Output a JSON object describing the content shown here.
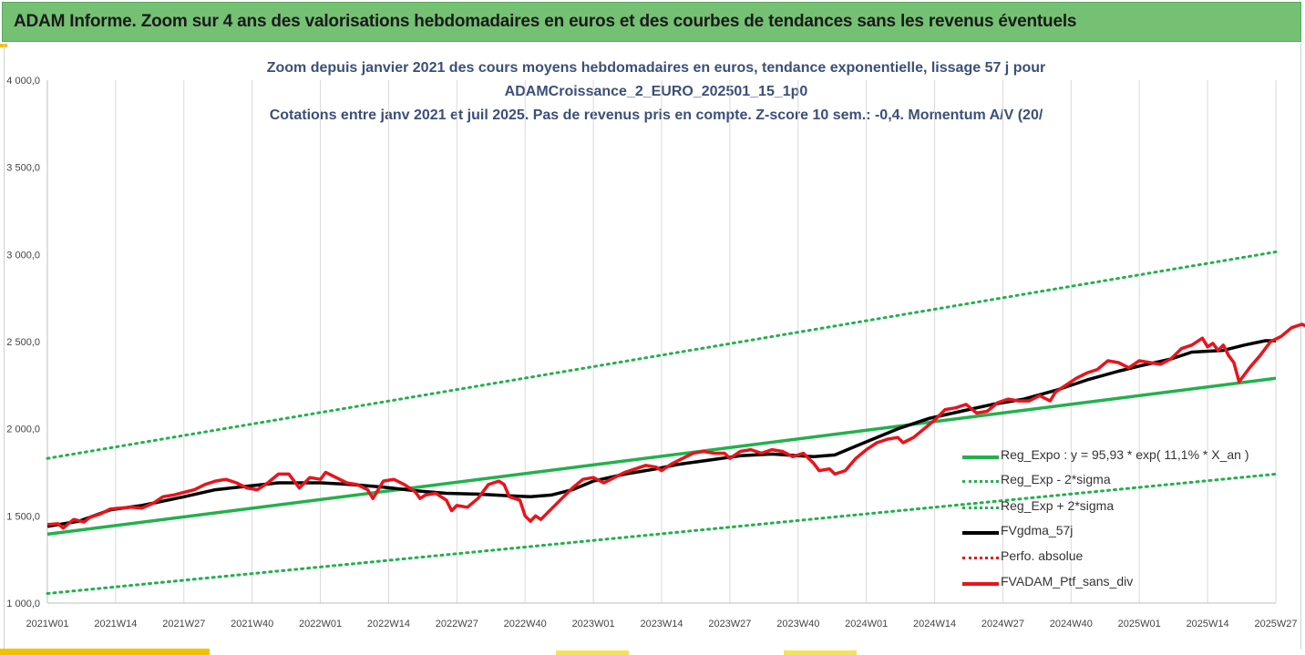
{
  "banner": {
    "title": "ADAM Informe. Zoom sur 4 ans des valorisations hebdomadaires en euros et des courbes de tendances sans les revenus éventuels"
  },
  "colors": {
    "banner_bg": "#74c174",
    "title": "#3b4f7a",
    "green": "#22b14c",
    "black": "#000000",
    "red": "#e8141c",
    "accent": "#f2c200"
  },
  "chart_data": {
    "type": "line",
    "title_lines": [
      "Zoom depuis janvier 2021 des cours moyens hebdomadaires  en euros, tendance exponentielle, lissage 57 j pour",
      "ADAMCroissance_2_EURO_202501_15_1p0",
      "Cotations entre janv 2021 et juil 2025. Pas de revenus pris en compte. Z-score 10 sem.: -0,4. Momentum A/V (20/"
    ],
    "ylim": [
      1000,
      4000
    ],
    "y_ticks": [
      "1 000,0",
      "1 500,0",
      "2 000,0",
      "2 500,0",
      "3 000,0",
      "3 500,0",
      "4 000,0"
    ],
    "y_tick_values": [
      1000,
      1500,
      2000,
      2500,
      3000,
      3500,
      4000
    ],
    "x_ticks": [
      "2021W01",
      "2021W14",
      "2021W27",
      "2021W40",
      "2022W01",
      "2022W14",
      "2022W27",
      "2022W40",
      "2023W01",
      "2023W14",
      "2023W27",
      "2023W40",
      "2024W01",
      "2024W14",
      "2024W27",
      "2024W40",
      "2025W01",
      "2025W14",
      "2025W27"
    ],
    "x_tick_weeks": [
      0,
      13,
      26,
      39,
      52,
      65,
      78,
      91,
      104,
      117,
      130,
      143,
      156,
      169,
      182,
      195,
      208,
      221,
      234
    ],
    "grid": "vertical",
    "legend_position": "bottom-right",
    "series": [
      {
        "name": "Reg_Expo : y = 95,93 * exp( 11,1% *  X_an )",
        "style": "solid-green",
        "points": [
          [
            0,
            1395
          ],
          [
            234,
            2290
          ]
        ]
      },
      {
        "name": "Reg_Exp - 2*sigma",
        "style": "dotted-green",
        "points": [
          [
            0,
            1055
          ],
          [
            234,
            1740
          ]
        ]
      },
      {
        "name": "Reg_Exp + 2*sigma",
        "style": "dotted-green",
        "points": [
          [
            0,
            1830
          ],
          [
            234,
            3015
          ]
        ]
      },
      {
        "name": "FVgdma_57j",
        "style": "solid-black",
        "points": [
          [
            0,
            1440
          ],
          [
            6,
            1470
          ],
          [
            12,
            1535
          ],
          [
            18,
            1560
          ],
          [
            26,
            1610
          ],
          [
            32,
            1650
          ],
          [
            38,
            1670
          ],
          [
            44,
            1690
          ],
          [
            52,
            1690
          ],
          [
            58,
            1680
          ],
          [
            64,
            1665
          ],
          [
            70,
            1645
          ],
          [
            76,
            1630
          ],
          [
            82,
            1625
          ],
          [
            88,
            1615
          ],
          [
            92,
            1610
          ],
          [
            96,
            1620
          ],
          [
            100,
            1650
          ],
          [
            104,
            1700
          ],
          [
            110,
            1740
          ],
          [
            116,
            1770
          ],
          [
            120,
            1795
          ],
          [
            126,
            1820
          ],
          [
            132,
            1845
          ],
          [
            138,
            1855
          ],
          [
            146,
            1840
          ],
          [
            150,
            1850
          ],
          [
            154,
            1900
          ],
          [
            158,
            1950
          ],
          [
            162,
            2000
          ],
          [
            168,
            2060
          ],
          [
            174,
            2100
          ],
          [
            180,
            2140
          ],
          [
            186,
            2170
          ],
          [
            192,
            2220
          ],
          [
            198,
            2280
          ],
          [
            204,
            2330
          ],
          [
            208,
            2360
          ],
          [
            214,
            2400
          ],
          [
            218,
            2440
          ],
          [
            224,
            2450
          ],
          [
            228,
            2480
          ],
          [
            232,
            2505
          ],
          [
            234,
            2505
          ]
        ]
      },
      {
        "name": "Perfo. absolue",
        "style": "dotted-red",
        "points": []
      },
      {
        "name": "FVADAM_Ptf_sans_div",
        "style": "solid-red",
        "points": [
          [
            0,
            1450
          ],
          [
            2,
            1455
          ],
          [
            3,
            1430
          ],
          [
            5,
            1480
          ],
          [
            7,
            1465
          ],
          [
            8,
            1490
          ],
          [
            10,
            1510
          ],
          [
            12,
            1540
          ],
          [
            14,
            1545
          ],
          [
            16,
            1550
          ],
          [
            18,
            1545
          ],
          [
            20,
            1570
          ],
          [
            22,
            1610
          ],
          [
            24,
            1620
          ],
          [
            26,
            1635
          ],
          [
            28,
            1650
          ],
          [
            30,
            1680
          ],
          [
            32,
            1700
          ],
          [
            34,
            1710
          ],
          [
            36,
            1690
          ],
          [
            38,
            1660
          ],
          [
            40,
            1650
          ],
          [
            42,
            1690
          ],
          [
            44,
            1740
          ],
          [
            46,
            1740
          ],
          [
            48,
            1660
          ],
          [
            50,
            1720
          ],
          [
            52,
            1710
          ],
          [
            53,
            1750
          ],
          [
            55,
            1720
          ],
          [
            57,
            1690
          ],
          [
            59,
            1680
          ],
          [
            61,
            1650
          ],
          [
            62,
            1600
          ],
          [
            63,
            1650
          ],
          [
            64,
            1700
          ],
          [
            66,
            1710
          ],
          [
            68,
            1680
          ],
          [
            70,
            1640
          ],
          [
            71,
            1600
          ],
          [
            72,
            1620
          ],
          [
            74,
            1630
          ],
          [
            76,
            1590
          ],
          [
            77,
            1530
          ],
          [
            78,
            1560
          ],
          [
            80,
            1550
          ],
          [
            82,
            1600
          ],
          [
            84,
            1680
          ],
          [
            86,
            1700
          ],
          [
            87,
            1680
          ],
          [
            88,
            1610
          ],
          [
            90,
            1590
          ],
          [
            91,
            1500
          ],
          [
            92,
            1470
          ],
          [
            93,
            1500
          ],
          [
            94,
            1480
          ],
          [
            96,
            1540
          ],
          [
            98,
            1600
          ],
          [
            100,
            1660
          ],
          [
            102,
            1710
          ],
          [
            104,
            1720
          ],
          [
            106,
            1690
          ],
          [
            108,
            1720
          ],
          [
            110,
            1750
          ],
          [
            112,
            1770
          ],
          [
            114,
            1790
          ],
          [
            116,
            1780
          ],
          [
            117,
            1760
          ],
          [
            119,
            1800
          ],
          [
            121,
            1830
          ],
          [
            123,
            1860
          ],
          [
            125,
            1870
          ],
          [
            127,
            1860
          ],
          [
            129,
            1860
          ],
          [
            130,
            1830
          ],
          [
            132,
            1870
          ],
          [
            134,
            1880
          ],
          [
            136,
            1860
          ],
          [
            138,
            1880
          ],
          [
            140,
            1870
          ],
          [
            142,
            1840
          ],
          [
            144,
            1860
          ],
          [
            146,
            1800
          ],
          [
            147,
            1760
          ],
          [
            149,
            1770
          ],
          [
            150,
            1740
          ],
          [
            152,
            1760
          ],
          [
            154,
            1830
          ],
          [
            156,
            1880
          ],
          [
            158,
            1920
          ],
          [
            160,
            1940
          ],
          [
            162,
            1950
          ],
          [
            163,
            1920
          ],
          [
            165,
            1950
          ],
          [
            167,
            2000
          ],
          [
            169,
            2050
          ],
          [
            171,
            2110
          ],
          [
            173,
            2120
          ],
          [
            175,
            2140
          ],
          [
            177,
            2090
          ],
          [
            179,
            2100
          ],
          [
            181,
            2150
          ],
          [
            183,
            2170
          ],
          [
            185,
            2160
          ],
          [
            187,
            2160
          ],
          [
            189,
            2190
          ],
          [
            191,
            2160
          ],
          [
            192,
            2210
          ],
          [
            194,
            2250
          ],
          [
            196,
            2290
          ],
          [
            198,
            2320
          ],
          [
            200,
            2340
          ],
          [
            202,
            2390
          ],
          [
            204,
            2380
          ],
          [
            206,
            2350
          ],
          [
            208,
            2390
          ],
          [
            210,
            2380
          ],
          [
            212,
            2370
          ],
          [
            214,
            2400
          ],
          [
            216,
            2460
          ],
          [
            218,
            2480
          ],
          [
            220,
            2520
          ],
          [
            221,
            2470
          ],
          [
            222,
            2490
          ],
          [
            223,
            2450
          ],
          [
            224,
            2480
          ],
          [
            225,
            2420
          ],
          [
            226,
            2380
          ],
          [
            227,
            2270
          ],
          [
            229,
            2350
          ],
          [
            231,
            2420
          ],
          [
            233,
            2500
          ],
          [
            235,
            2530
          ],
          [
            237,
            2580
          ],
          [
            239,
            2600
          ],
          [
            241,
            2570
          ],
          [
            243,
            2520
          ],
          [
            244,
            2520
          ],
          [
            245,
            2510
          ]
        ]
      }
    ]
  }
}
